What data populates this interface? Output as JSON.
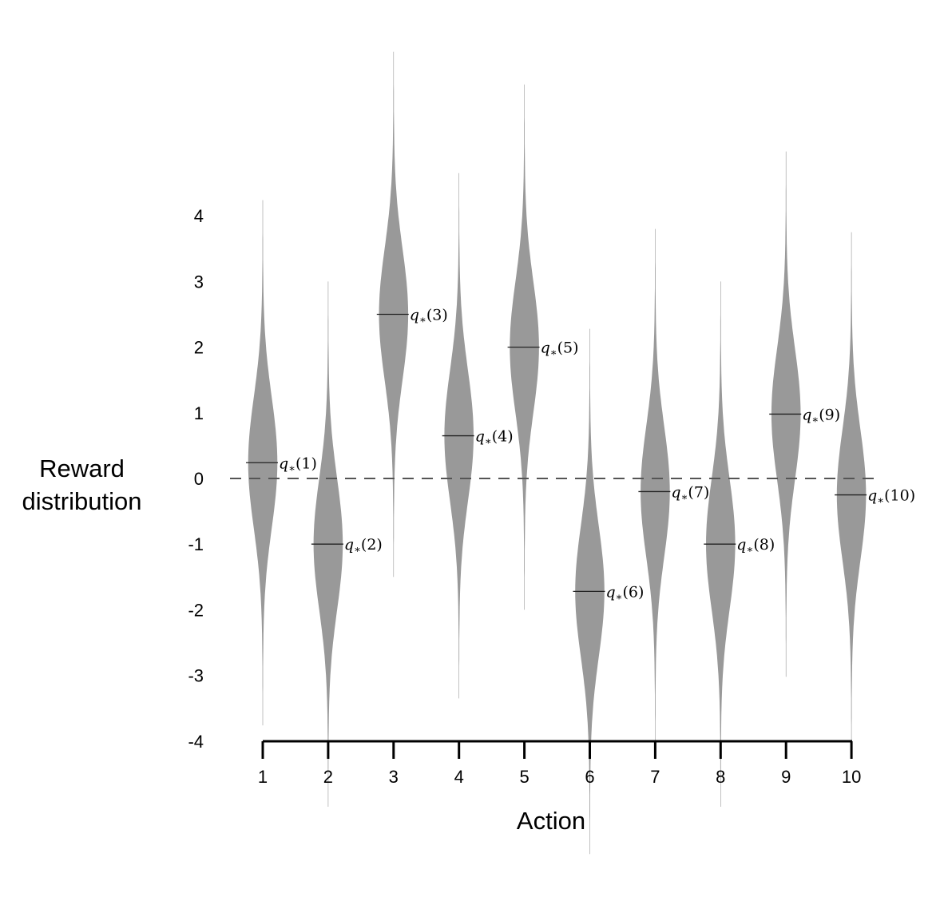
{
  "chart_data": {
    "type": "violin",
    "title": "",
    "xlabel": "Action",
    "ylabel": "Reward distribution",
    "categories": [
      "1",
      "2",
      "3",
      "4",
      "5",
      "6",
      "7",
      "8",
      "9",
      "10"
    ],
    "yticks": [
      4,
      3,
      2,
      1,
      0,
      -1,
      -2,
      -3,
      -4
    ],
    "ylim": [
      -4,
      4
    ],
    "series": [
      {
        "name": "q*(a)",
        "values": [
          0.24,
          -1.0,
          2.5,
          0.65,
          2.0,
          -1.72,
          -0.2,
          -1.0,
          0.98,
          -0.25
        ]
      }
    ],
    "annotations": [
      "q*(1)",
      "q*(2)",
      "q*(3)",
      "q*(4)",
      "q*(5)",
      "q*(6)",
      "q*(7)",
      "q*(8)",
      "q*(9)",
      "q*(10)"
    ],
    "reference_line": {
      "y": 0,
      "style": "dashed"
    },
    "distribution_sd": 1,
    "fill_color": "#999999",
    "grid": false,
    "legend": "none"
  },
  "axes": {
    "xlabel": "Action",
    "ylabel_line1": "Reward",
    "ylabel_line2": "distribution"
  }
}
